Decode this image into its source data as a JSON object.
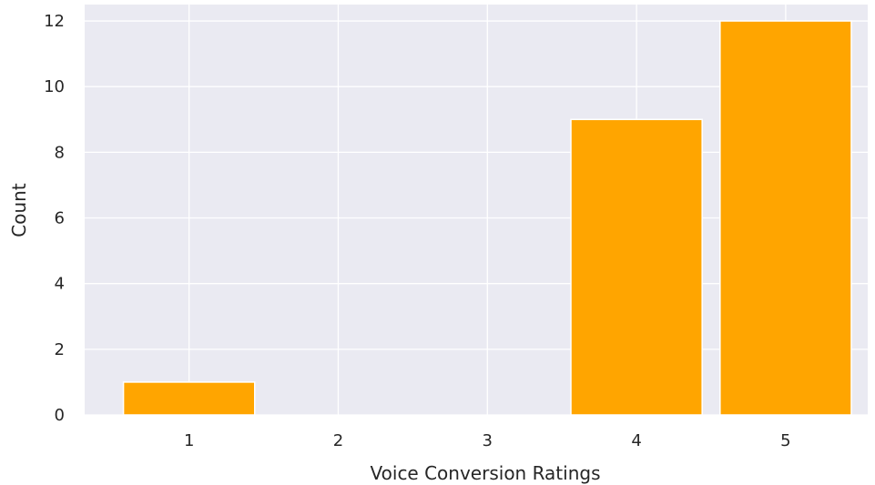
{
  "chart_data": {
    "type": "bar",
    "categories": [
      "1",
      "2",
      "3",
      "4",
      "5"
    ],
    "values": [
      1,
      0,
      0,
      9,
      12
    ],
    "xlabel": "Voice Conversion Ratings",
    "ylabel": "Count",
    "ylim": [
      0,
      12.5
    ],
    "yticks": [
      "0",
      "2",
      "4",
      "6",
      "8",
      "10",
      "12"
    ],
    "grid": true,
    "style": "seaborn-darkgrid",
    "colors": {
      "bar": "#FFA500",
      "background": "#EAEAF2",
      "grid": "#FFFFFF",
      "text": "#262626"
    }
  }
}
